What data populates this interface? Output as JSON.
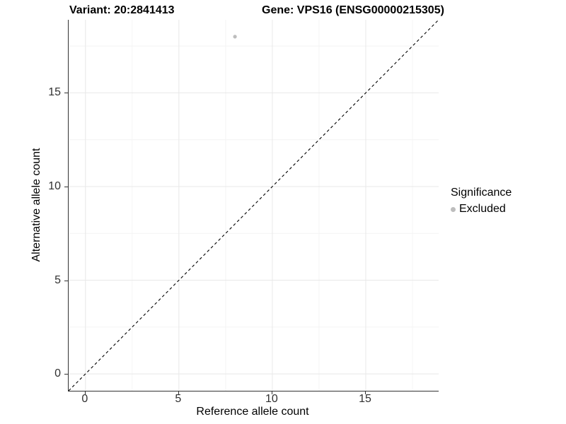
{
  "title": {
    "variant": "Variant: 20:2841413",
    "gene": "Gene: VPS16 (ENSG00000215305)"
  },
  "chart_data": {
    "type": "scatter",
    "xlabel": "Reference allele count",
    "ylabel": "Alternative allele count",
    "xlim": [
      -0.9,
      18.9
    ],
    "ylim": [
      -0.9,
      18.9
    ],
    "x_ticks": [
      0,
      5,
      10,
      15
    ],
    "y_ticks": [
      0,
      5,
      10,
      15
    ],
    "x_minor_ticks": [
      2.5,
      7.5,
      12.5,
      17.5
    ],
    "y_minor_ticks": [
      2.5,
      7.5,
      12.5,
      17.5
    ],
    "grid": "major+minor",
    "points": [
      {
        "x": 8,
        "y": 18,
        "series": "Excluded"
      }
    ],
    "reference_line": {
      "type": "identity",
      "style": "dashed",
      "from": [
        -0.9,
        -0.9
      ],
      "to": [
        18.9,
        18.9
      ]
    },
    "legend": {
      "title": "Significance",
      "position": "right",
      "entries": [
        {
          "label": "Excluded",
          "color": "#bdbdbd",
          "marker": "circle"
        }
      ]
    }
  },
  "colors": {
    "background": "#ffffff",
    "grid_major": "#e8e8e8",
    "grid_minor": "#f4f4f4",
    "axis_line": "#333333",
    "tick_label": "#303030",
    "title_text": "#000000",
    "point": "#bdbdbd",
    "reference_line": "#000000"
  }
}
